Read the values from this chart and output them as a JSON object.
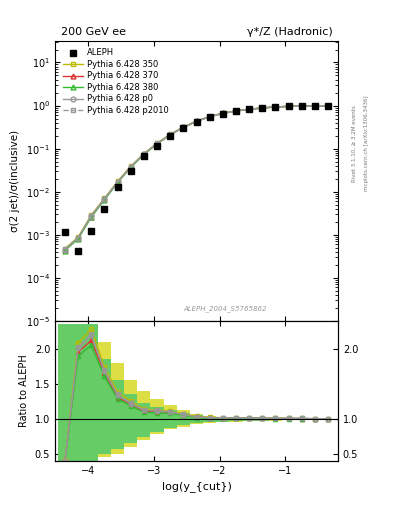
{
  "title_left": "200 GeV ee",
  "title_right": "γ*/Z (Hadronic)",
  "ylabel_main": "σ(2 jet)/σ(inclusive)",
  "ylabel_ratio": "Ratio to ALEPH",
  "xlabel": "log(y_{cut})",
  "right_label": "Rivet 3.1.10, ≥ 3.2M events",
  "right_label2": "mcplots.cern.ch [arXiv:1306.3436]",
  "ref_label": "ALEPH_2004_S5765862",
  "ylim_main_log": [
    -5,
    1.5
  ],
  "xlim": [
    -4.5,
    -0.2
  ],
  "ylim_ratio": [
    0.4,
    2.4
  ],
  "x": [
    -4.35,
    -4.15,
    -3.95,
    -3.75,
    -3.55,
    -3.35,
    -3.15,
    -2.95,
    -2.75,
    -2.55,
    -2.35,
    -2.15,
    -1.95,
    -1.75,
    -1.55,
    -1.35,
    -1.15,
    -0.95,
    -0.75,
    -0.55,
    -0.35
  ],
  "aleph": [
    0.00115,
    0.00042,
    0.00125,
    0.004,
    0.0125,
    0.031,
    0.067,
    0.118,
    0.193,
    0.295,
    0.421,
    0.544,
    0.652,
    0.742,
    0.812,
    0.872,
    0.922,
    0.952,
    0.97,
    0.983,
    0.993
  ],
  "p350": [
    0.000475,
    0.000875,
    0.00285,
    0.00695,
    0.0173,
    0.0388,
    0.0763,
    0.133,
    0.214,
    0.316,
    0.436,
    0.556,
    0.663,
    0.752,
    0.821,
    0.88,
    0.929,
    0.959,
    0.975,
    0.985,
    0.993
  ],
  "p370": [
    0.000445,
    0.00082,
    0.00265,
    0.00663,
    0.0163,
    0.0375,
    0.0742,
    0.13,
    0.211,
    0.312,
    0.431,
    0.551,
    0.659,
    0.748,
    0.818,
    0.877,
    0.927,
    0.957,
    0.973,
    0.983,
    0.991
  ],
  "p380": [
    0.00043,
    0.000798,
    0.00256,
    0.00643,
    0.0161,
    0.0367,
    0.0733,
    0.128,
    0.208,
    0.309,
    0.428,
    0.548,
    0.657,
    0.747,
    0.817,
    0.876,
    0.926,
    0.956,
    0.972,
    0.982,
    0.99
  ],
  "pp0": [
    0.000453,
    0.000842,
    0.00274,
    0.00673,
    0.01668,
    0.0377,
    0.0753,
    0.131,
    0.212,
    0.313,
    0.432,
    0.552,
    0.66,
    0.75,
    0.82,
    0.879,
    0.929,
    0.959,
    0.975,
    0.985,
    0.993
  ],
  "pp2010": [
    0.000462,
    0.000851,
    0.00276,
    0.00681,
    0.01686,
    0.0381,
    0.0756,
    0.132,
    0.213,
    0.314,
    0.433,
    0.553,
    0.661,
    0.751,
    0.821,
    0.88,
    0.93,
    0.96,
    0.976,
    0.986,
    0.994
  ],
  "color_350": "#bbbb00",
  "color_370": "#dd3333",
  "color_380": "#33bb33",
  "color_p0": "#999999",
  "color_p2010": "#999999",
  "band_yellow": "#dddd44",
  "band_green": "#66cc66",
  "ratio_350": [
    0.413,
    2.083,
    2.28,
    1.738,
    1.384,
    1.252,
    1.139,
    1.127,
    1.109,
    1.071,
    1.036,
    1.022,
    1.017,
    1.013,
    1.011,
    1.009,
    1.008,
    1.007,
    1.005,
    1.002,
    1.0
  ],
  "ratio_370": [
    0.387,
    1.952,
    2.12,
    1.658,
    1.304,
    1.21,
    1.107,
    1.102,
    1.093,
    1.058,
    1.024,
    1.013,
    1.011,
    1.008,
    1.007,
    1.006,
    1.005,
    1.005,
    1.003,
    1.0,
    0.998
  ],
  "ratio_380": [
    0.374,
    1.9,
    2.048,
    1.608,
    1.288,
    1.184,
    1.094,
    1.085,
    1.078,
    1.048,
    1.017,
    1.007,
    1.008,
    1.007,
    1.006,
    1.005,
    1.004,
    1.004,
    1.002,
    0.999,
    0.997
  ],
  "ratio_p0": [
    0.394,
    2.005,
    2.192,
    1.683,
    1.334,
    1.216,
    1.124,
    1.11,
    1.098,
    1.061,
    1.026,
    1.015,
    1.012,
    1.011,
    1.01,
    1.008,
    1.008,
    1.007,
    1.005,
    1.002,
    1.0
  ],
  "ratio_p2010": [
    0.402,
    2.026,
    2.208,
    1.703,
    1.349,
    1.229,
    1.128,
    1.119,
    1.104,
    1.064,
    1.029,
    1.017,
    1.014,
    1.012,
    1.011,
    1.009,
    1.009,
    1.008,
    1.006,
    1.003,
    1.001
  ],
  "band_yellow_top": [
    2.35,
    2.35,
    2.35,
    2.1,
    1.8,
    1.55,
    1.4,
    1.28,
    1.2,
    1.13,
    1.07,
    1.04,
    1.03,
    1.025,
    1.022,
    1.018,
    1.016,
    1.012,
    1.01,
    1.007,
    1.004
  ],
  "band_yellow_bot": [
    0.4,
    0.4,
    0.4,
    0.45,
    0.5,
    0.6,
    0.7,
    0.78,
    0.85,
    0.89,
    0.92,
    0.94,
    0.95,
    0.96,
    0.965,
    0.97,
    0.975,
    0.98,
    0.985,
    0.99,
    0.994
  ],
  "band_green_top": [
    2.35,
    2.35,
    2.35,
    1.85,
    1.55,
    1.35,
    1.22,
    1.17,
    1.13,
    1.09,
    1.05,
    1.03,
    1.025,
    1.018,
    1.016,
    1.013,
    1.012,
    1.01,
    1.008,
    1.005,
    1.002
  ],
  "band_green_bot": [
    0.4,
    0.4,
    0.4,
    0.5,
    0.57,
    0.65,
    0.74,
    0.81,
    0.87,
    0.91,
    0.94,
    0.95,
    0.96,
    0.965,
    0.968,
    0.973,
    0.978,
    0.983,
    0.988,
    0.993,
    0.996
  ]
}
